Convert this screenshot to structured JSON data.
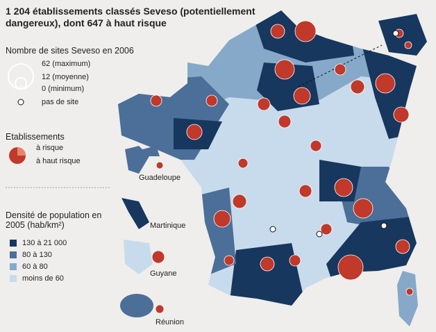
{
  "header": {
    "title": "1 204 établissements classés Seveso (potentiellement dangereux), dont 647 à haut risque"
  },
  "size_legend": {
    "title": "Nombre de sites Seveso en 2006",
    "items": [
      "62 (maximum)",
      "12 (moyenne)",
      "0 (minimum)",
      "pas de site"
    ]
  },
  "establishments_legend": {
    "title": "Etablissements",
    "items": [
      "à risque",
      "à haut risque"
    ]
  },
  "overseas": [
    "Guadeloupe",
    "Martinique",
    "Guyane",
    "Réunion"
  ],
  "density_legend": {
    "title": "Densité de population en 2005 (hab/km²)",
    "items": [
      {
        "label": "130 à 21 000",
        "color": "#17375e"
      },
      {
        "label": "80 à 130",
        "color": "#4b6f98"
      },
      {
        "label": "60 à 80",
        "color": "#86a9c9"
      },
      {
        "label": "moins de 60",
        "color": "#c8dbec"
      }
    ]
  }
}
